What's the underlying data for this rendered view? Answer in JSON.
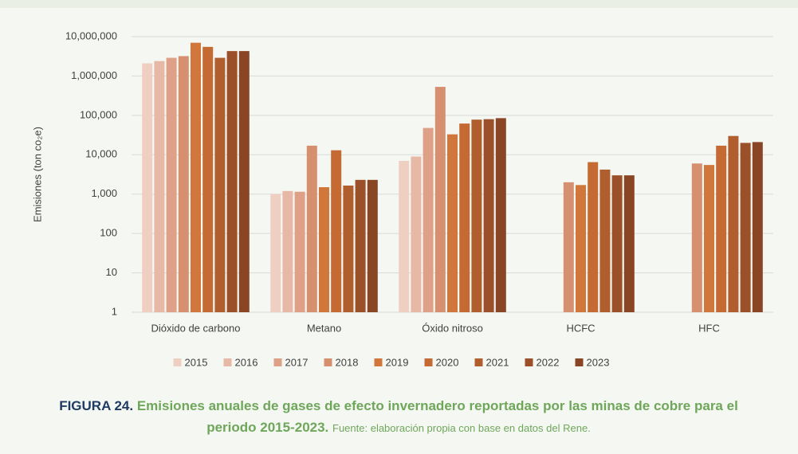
{
  "chart_data": {
    "type": "bar",
    "log_scale": true,
    "grid": true,
    "ylabel": "Emisiones (ton co₂e)",
    "categories": [
      "Dióxido de carbono",
      "Metano",
      "Óxido nitroso",
      "HCFC",
      "HFC"
    ],
    "series": [
      {
        "name": "2015",
        "color": "#f0cfc3",
        "values": [
          2100000,
          1000,
          7000,
          null,
          null
        ]
      },
      {
        "name": "2016",
        "color": "#e8b8a6",
        "values": [
          2400000,
          1200,
          9000,
          null,
          null
        ]
      },
      {
        "name": "2017",
        "color": "#dfa088",
        "values": [
          2900000,
          1150,
          48000,
          null,
          null
        ]
      },
      {
        "name": "2018",
        "color": "#d6906f",
        "values": [
          3200000,
          17000,
          530000,
          2000,
          6000
        ]
      },
      {
        "name": "2019",
        "color": "#d2773b",
        "values": [
          7000000,
          1500,
          33000,
          1700,
          5500
        ]
      },
      {
        "name": "2020",
        "color": "#c46a32",
        "values": [
          5500000,
          13000,
          62000,
          6500,
          17000
        ]
      },
      {
        "name": "2021",
        "color": "#b05e2e",
        "values": [
          2900000,
          1650,
          78000,
          4200,
          30000
        ]
      },
      {
        "name": "2022",
        "color": "#9c5029",
        "values": [
          4300000,
          2300,
          80000,
          3000,
          20000
        ]
      },
      {
        "name": "2023",
        "color": "#8a4624",
        "values": [
          4300000,
          2300,
          85000,
          3000,
          21000
        ]
      }
    ],
    "ylim": [
      1,
      10000000
    ],
    "yticks": [
      1,
      10,
      100,
      {
        "value": 1000,
        "label": "1,000"
      },
      {
        "value": 10000,
        "label": "10,000"
      },
      {
        "value": 100000,
        "label": "100,000"
      },
      {
        "value": 1000000,
        "label": "1,000,000"
      },
      {
        "value": 10000000,
        "label": "10,000,000"
      }
    ],
    "legend": "bottom",
    "caption": {
      "label": "FIGURA 24.",
      "title": "Emisiones anuales de gases de efecto invernadero reportadas por las minas de cobre para el periodo 2015-2023.",
      "source": "Fuente: elaboración propia con base en datos del Rene."
    }
  }
}
